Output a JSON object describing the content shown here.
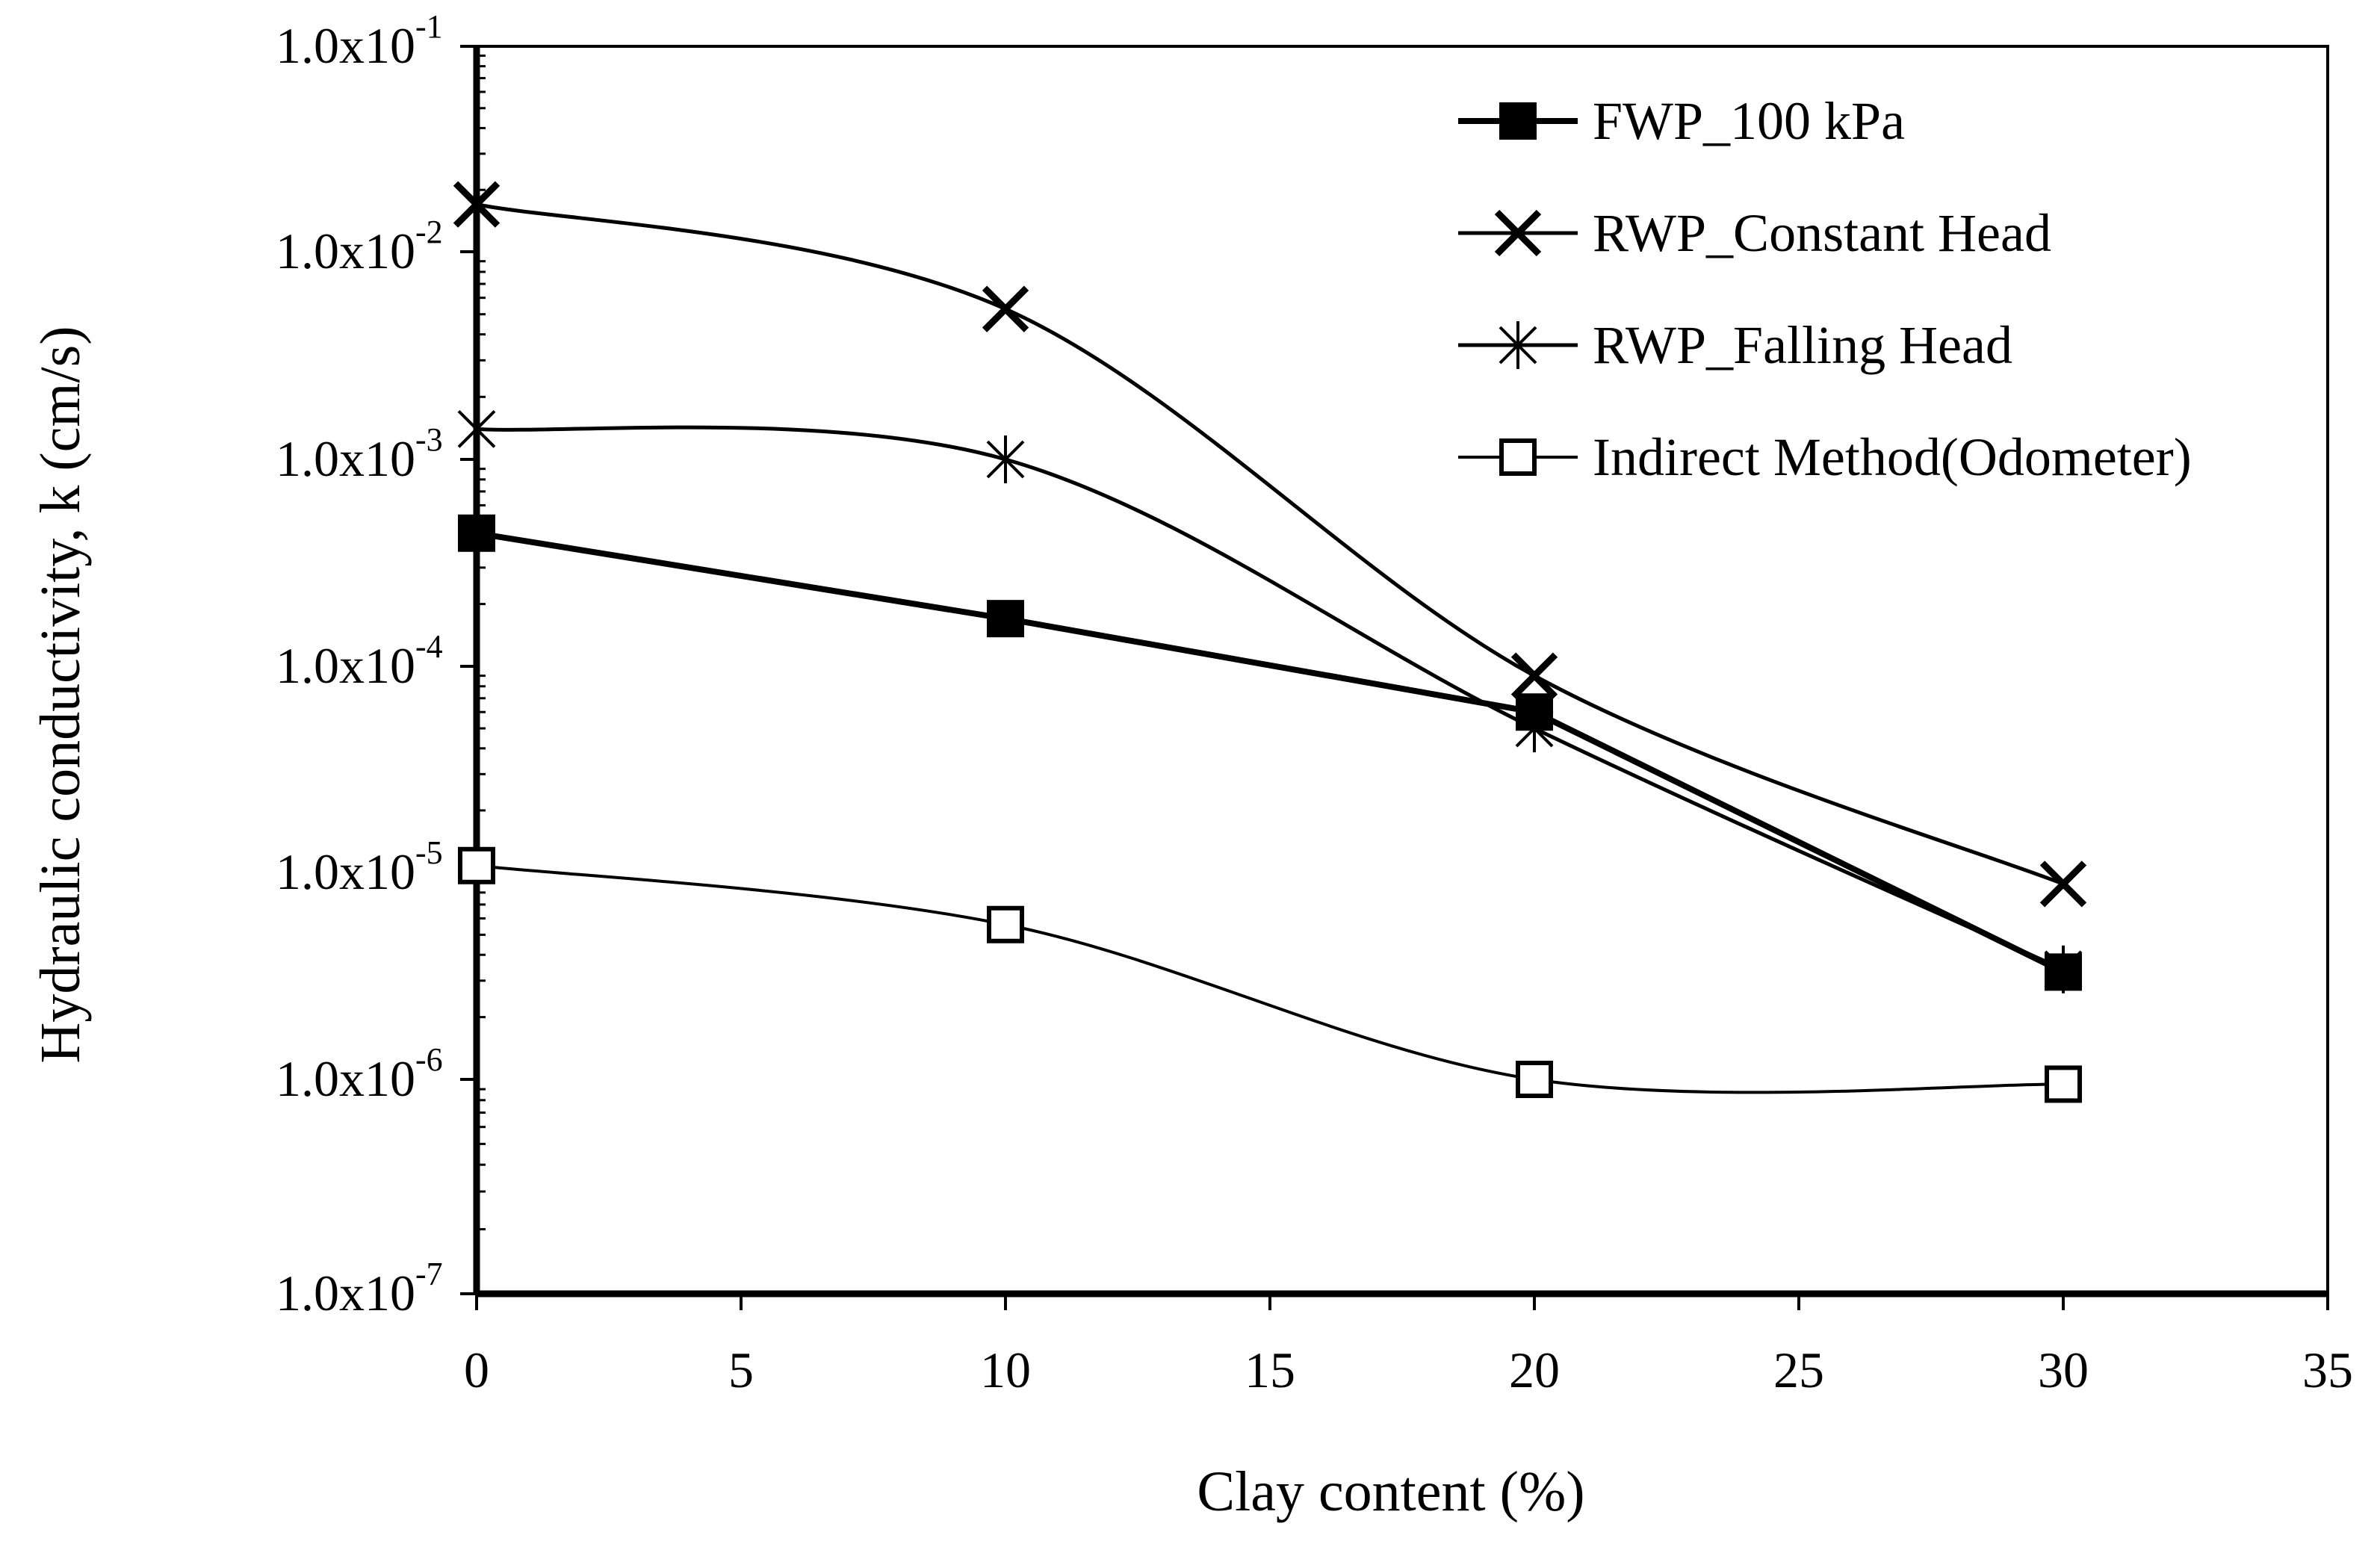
{
  "chart_data": {
    "type": "line",
    "title": "",
    "xlabel": "Clay content (%)",
    "ylabel": "Hydraulic conductivity, k (cm/s)",
    "xlim": [
      0,
      35
    ],
    "ylim": [
      1e-07,
      0.1
    ],
    "yscale": "log",
    "grid": false,
    "legend_position": "top-right",
    "x_ticks": [
      "0",
      "5",
      "10",
      "15",
      "20",
      "25",
      "30",
      "35"
    ],
    "y_ticks": [
      {
        "mantissa": "1.0x10",
        "exp": "-1"
      },
      {
        "mantissa": "1.0x10",
        "exp": "-2"
      },
      {
        "mantissa": "1.0x10",
        "exp": "-3"
      },
      {
        "mantissa": "1.0x10",
        "exp": "-4"
      },
      {
        "mantissa": "1.0x10",
        "exp": "-5"
      },
      {
        "mantissa": "1.0x10",
        "exp": "-6"
      },
      {
        "mantissa": "1.0x10",
        "exp": "-7"
      }
    ],
    "x": [
      0,
      10,
      20,
      30
    ],
    "series": [
      {
        "name": "FWP_100 kPa",
        "marker": "filled-square",
        "values": [
          0.00044,
          0.00017,
          6e-05,
          3.3e-06
        ]
      },
      {
        "name": "RWP_Constant Head",
        "marker": "x",
        "values": [
          0.017,
          0.0053,
          9e-05,
          8.8e-06
        ]
      },
      {
        "name": "RWP_Falling Head",
        "marker": "star",
        "values": [
          0.0014,
          0.001,
          5e-05,
          3.4e-06
        ]
      },
      {
        "name": "Indirect Method(Odometer)",
        "marker": "open-square",
        "values": [
          1.08e-05,
          5.6e-06,
          1e-06,
          9.5e-07
        ]
      }
    ]
  }
}
